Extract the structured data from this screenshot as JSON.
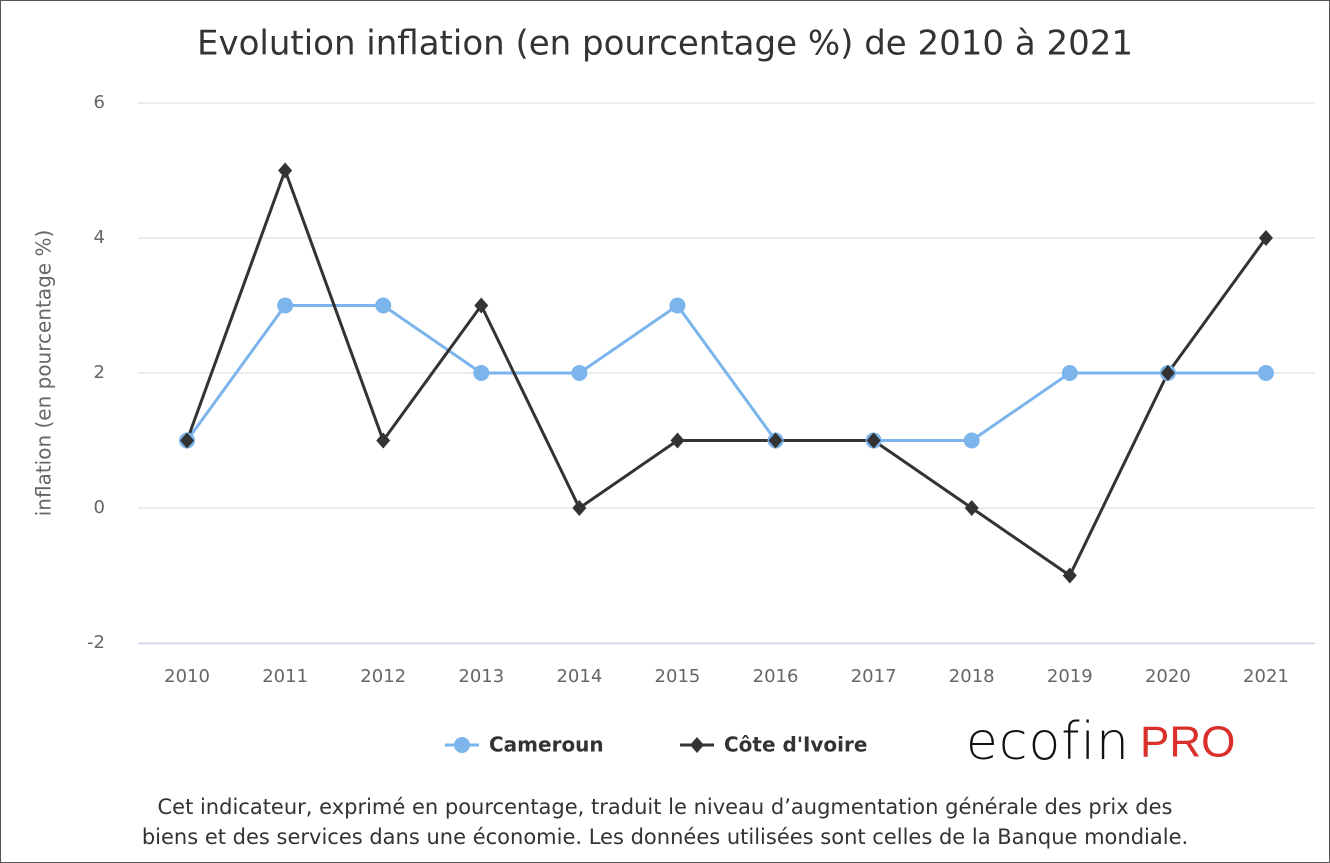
{
  "chart_data": {
    "type": "line",
    "title": "Evolution inflation (en pourcentage %) de 2010 à 2021",
    "y_label": "inflation (en pourcentage %)",
    "categories": [
      "2010",
      "2011",
      "2012",
      "2013",
      "2014",
      "2015",
      "2016",
      "2017",
      "2018",
      "2019",
      "2020",
      "2021"
    ],
    "series": [
      {
        "name": "Cameroun",
        "color": "#7cb5ec",
        "marker": "circle",
        "values": [
          1,
          3,
          3,
          2,
          2,
          3,
          1,
          1,
          1,
          2,
          2,
          2
        ]
      },
      {
        "name": "Côte d'Ivoire",
        "color": "#333333",
        "marker": "diamond",
        "values": [
          1,
          5,
          1,
          3,
          0,
          1,
          1,
          1,
          0,
          -1,
          2,
          4
        ]
      }
    ],
    "ylim": [
      -2,
      6
    ],
    "yticks": [
      -2,
      0,
      2,
      4,
      6
    ],
    "grid": true,
    "legend": "bottom"
  },
  "logo": {
    "brand": "ecofin",
    "suffix": "PRO"
  },
  "caption": [
    "Cet indicateur, exprimé en pourcentage, traduit le niveau d’augmentation générale des prix des",
    "biens et des services dans une économie. Les données utilisées sont celles de la Banque mondiale."
  ]
}
